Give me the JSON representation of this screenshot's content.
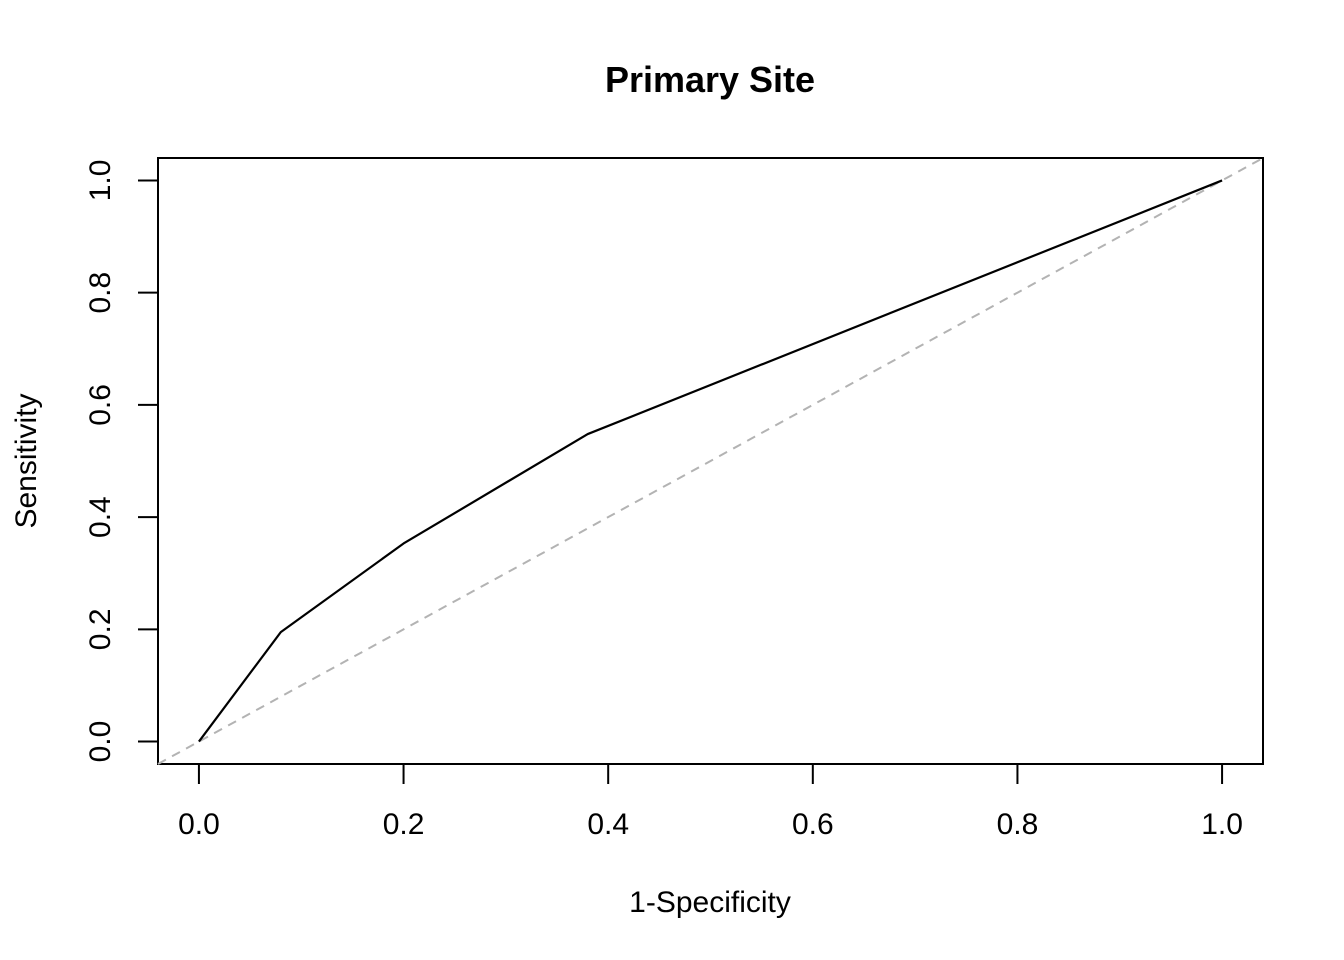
{
  "chart_data": {
    "type": "line",
    "title": "Primary Site",
    "xlabel": "1-Specificity",
    "ylabel": "Sensitivity",
    "xlim": [
      -0.04,
      1.04
    ],
    "ylim": [
      -0.04,
      1.04
    ],
    "x_ticks": [
      0.0,
      0.2,
      0.4,
      0.6,
      0.8,
      1.0
    ],
    "y_ticks": [
      0.0,
      0.2,
      0.4,
      0.6,
      0.8,
      1.0
    ],
    "x_tick_labels": [
      "0.0",
      "0.2",
      "0.4",
      "0.6",
      "0.8",
      "1.0"
    ],
    "y_tick_labels": [
      "0.0",
      "0.2",
      "0.4",
      "0.6",
      "0.8",
      "1.0"
    ],
    "grid": false,
    "series": [
      {
        "x": [
          0.0,
          0.08,
          0.2,
          0.38,
          1.0
        ],
        "y": [
          0.0,
          0.195,
          0.353,
          0.548,
          1.0
        ],
        "color": "#000000",
        "style": "solid"
      }
    ],
    "reference_line": {
      "x": [
        -0.04,
        1.04
      ],
      "y": [
        -0.04,
        1.04
      ],
      "color": "#b3b3b3",
      "style": "dashed"
    }
  }
}
